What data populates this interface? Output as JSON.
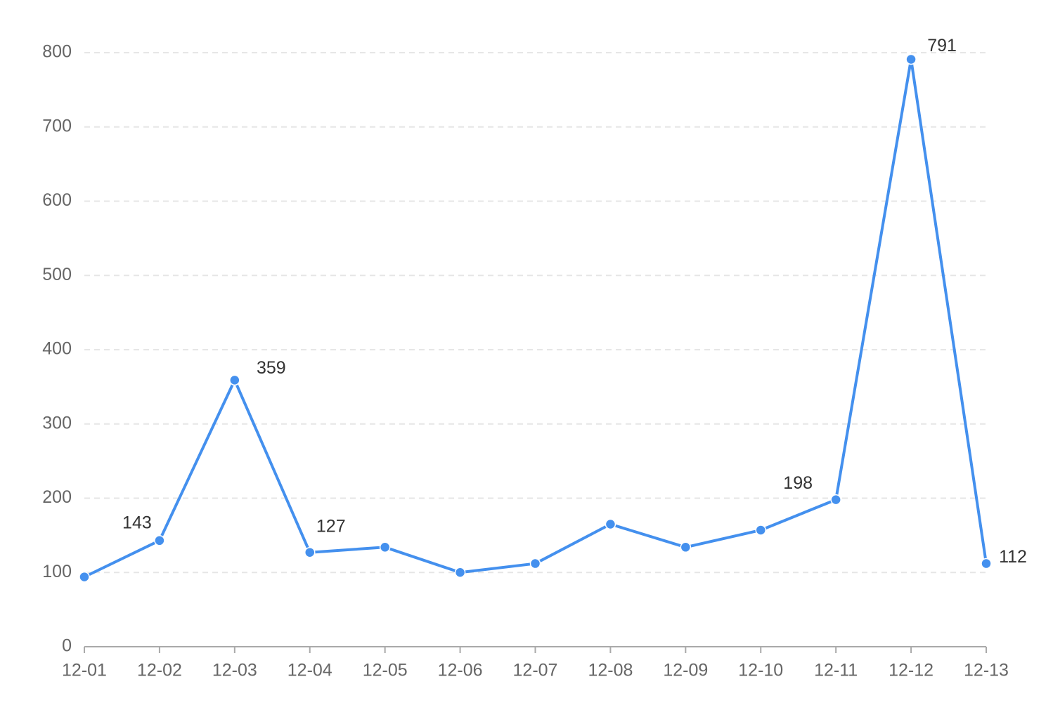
{
  "chart_data": {
    "type": "line",
    "categories": [
      "12-01",
      "12-02",
      "12-03",
      "12-04",
      "12-05",
      "12-06",
      "12-07",
      "12-08",
      "12-09",
      "12-10",
      "12-11",
      "12-12",
      "12-13"
    ],
    "series": [
      {
        "color": "#4490ee",
        "values": [
          94,
          143,
          359,
          127,
          134,
          100,
          112,
          165,
          134,
          157,
          198,
          791,
          112
        ],
        "value_labels": [
          null,
          "143",
          "359",
          "127",
          null,
          null,
          null,
          null,
          null,
          null,
          "198",
          "791",
          "112"
        ]
      }
    ],
    "ylim": [
      0,
      800
    ],
    "yticks": [
      0,
      100,
      200,
      300,
      400,
      500,
      600,
      700,
      800
    ],
    "grid": true
  }
}
